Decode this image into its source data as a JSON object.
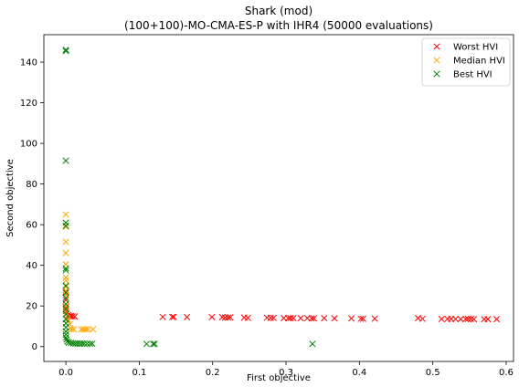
{
  "chart_data": {
    "type": "scatter",
    "title": "Shark (mod)",
    "subtitle": "(100+100)-MO-CMA-ES-P with IHR4 (50000 evaluations)",
    "xlabel": "First objective",
    "ylabel": "Second objective",
    "xlim": [
      -0.03,
      0.61
    ],
    "ylim": [
      -7.3,
      153.5
    ],
    "xticks": [
      "0.0",
      "0.1",
      "0.2",
      "0.3",
      "0.4",
      "0.5",
      "0.6"
    ],
    "xtick_values": [
      0.0,
      0.1,
      0.2,
      0.3,
      0.4,
      0.5,
      0.6
    ],
    "yticks": [
      "0",
      "20",
      "40",
      "60",
      "80",
      "100",
      "120",
      "140"
    ],
    "ytick_values": [
      0,
      20,
      40,
      60,
      80,
      100,
      120,
      140
    ],
    "grid": false,
    "legend_position": "top-right",
    "marker": "x",
    "series": [
      {
        "name": "Worst HVI",
        "color": "#ff0000",
        "points": [
          [
            0.0,
            27.0
          ],
          [
            0.0,
            25.5
          ],
          [
            0.0,
            23.0
          ],
          [
            0.0,
            19.5
          ],
          [
            0.0,
            18.5
          ],
          [
            0.0,
            17.5
          ],
          [
            0.001,
            16.2
          ],
          [
            0.003,
            15.5
          ],
          [
            0.005,
            15.0
          ],
          [
            0.007,
            15.0
          ],
          [
            0.009,
            14.8
          ],
          [
            0.012,
            14.8
          ],
          [
            0.132,
            14.6
          ],
          [
            0.145,
            14.6
          ],
          [
            0.147,
            14.6
          ],
          [
            0.165,
            14.5
          ],
          [
            0.199,
            14.5
          ],
          [
            0.213,
            14.5
          ],
          [
            0.217,
            14.3
          ],
          [
            0.221,
            14.3
          ],
          [
            0.224,
            14.4
          ],
          [
            0.243,
            14.3
          ],
          [
            0.248,
            14.1
          ],
          [
            0.274,
            14.2
          ],
          [
            0.279,
            14.1
          ],
          [
            0.283,
            14.1
          ],
          [
            0.297,
            14.0
          ],
          [
            0.303,
            14.0
          ],
          [
            0.306,
            14.0
          ],
          [
            0.31,
            14.0
          ],
          [
            0.32,
            14.0
          ],
          [
            0.329,
            14.0
          ],
          [
            0.335,
            13.9
          ],
          [
            0.338,
            13.9
          ],
          [
            0.352,
            14.0
          ],
          [
            0.366,
            13.9
          ],
          [
            0.389,
            13.9
          ],
          [
            0.402,
            13.7
          ],
          [
            0.405,
            13.7
          ],
          [
            0.421,
            13.8
          ],
          [
            0.48,
            14.0
          ],
          [
            0.486,
            13.7
          ],
          [
            0.512,
            13.6
          ],
          [
            0.52,
            13.6
          ],
          [
            0.525,
            13.6
          ],
          [
            0.531,
            13.6
          ],
          [
            0.538,
            13.5
          ],
          [
            0.545,
            13.6
          ],
          [
            0.548,
            13.6
          ],
          [
            0.552,
            13.6
          ],
          [
            0.556,
            13.5
          ],
          [
            0.57,
            13.5
          ],
          [
            0.575,
            13.5
          ],
          [
            0.587,
            13.5
          ]
        ]
      },
      {
        "name": "Median HVI",
        "color": "#ffa500",
        "points": [
          [
            0.0,
            65.0
          ],
          [
            0.0,
            59.0
          ],
          [
            0.0,
            51.5
          ],
          [
            0.0,
            46.0
          ],
          [
            0.0,
            40.5
          ],
          [
            0.0,
            34.0
          ],
          [
            0.0,
            32.5
          ],
          [
            0.0,
            29.5
          ],
          [
            0.0,
            27.5
          ],
          [
            0.0,
            25.5
          ],
          [
            0.0,
            20.0
          ],
          [
            0.0,
            18.0
          ],
          [
            0.001,
            16.5
          ],
          [
            0.002,
            13.5
          ],
          [
            0.003,
            12.5
          ],
          [
            0.005,
            11.0
          ],
          [
            0.006,
            9.0
          ],
          [
            0.008,
            8.5
          ],
          [
            0.011,
            8.5
          ],
          [
            0.021,
            8.5
          ],
          [
            0.024,
            8.5
          ],
          [
            0.027,
            8.5
          ],
          [
            0.03,
            8.5
          ],
          [
            0.037,
            8.5
          ]
        ]
      },
      {
        "name": "Best HVI",
        "color": "#008000",
        "points": [
          [
            0.0,
            146.0
          ],
          [
            0.0,
            145.5
          ],
          [
            0.0,
            91.5
          ],
          [
            0.0,
            61.0
          ],
          [
            0.0,
            59.5
          ],
          [
            0.0,
            38.5
          ],
          [
            0.0,
            37.5
          ],
          [
            0.0,
            30.0
          ],
          [
            0.0,
            26.5
          ],
          [
            0.0,
            24.0
          ],
          [
            0.0,
            21.0
          ],
          [
            0.0,
            18.5
          ],
          [
            0.0,
            16.0
          ],
          [
            0.0,
            13.5
          ],
          [
            0.0,
            11.5
          ],
          [
            0.0,
            9.5
          ],
          [
            0.0,
            7.5
          ],
          [
            0.0,
            6.0
          ],
          [
            0.0,
            4.5
          ],
          [
            0.001,
            3.5
          ],
          [
            0.002,
            2.5
          ],
          [
            0.004,
            2.0
          ],
          [
            0.007,
            1.8
          ],
          [
            0.01,
            1.6
          ],
          [
            0.013,
            1.5
          ],
          [
            0.016,
            1.5
          ],
          [
            0.019,
            1.5
          ],
          [
            0.022,
            1.5
          ],
          [
            0.025,
            1.5
          ],
          [
            0.029,
            1.4
          ],
          [
            0.033,
            1.4
          ],
          [
            0.036,
            1.4
          ],
          [
            0.11,
            1.3
          ],
          [
            0.119,
            1.3
          ],
          [
            0.121,
            1.3
          ],
          [
            0.336,
            1.3
          ]
        ]
      }
    ]
  }
}
